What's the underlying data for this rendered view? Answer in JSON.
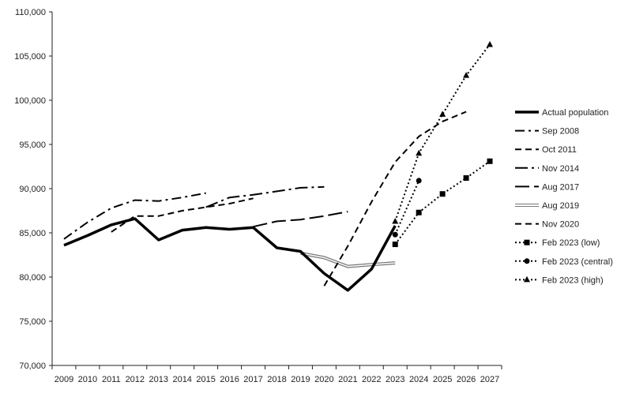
{
  "chart_data": {
    "type": "line",
    "x": [
      "2009",
      "2010",
      "2011",
      "2012",
      "2013",
      "2014",
      "2015",
      "2016",
      "2017",
      "2018",
      "2019",
      "2020",
      "2021",
      "2022",
      "2023",
      "2024",
      "2025",
      "2026",
      "2027"
    ],
    "ylim": [
      70000,
      110000
    ],
    "y_ticks": [
      "70,000",
      "75,000",
      "80,000",
      "85,000",
      "90,000",
      "95,000",
      "100,000",
      "105,000",
      "110,000"
    ],
    "grid": false,
    "legend_position": "right",
    "series": [
      {
        "name": "Actual population",
        "style": "thick-solid",
        "color": "#000000",
        "points": [
          [
            "2009",
            83600
          ],
          [
            "2010",
            84700
          ],
          [
            "2011",
            85900
          ],
          [
            "2012",
            86600
          ],
          [
            "2013",
            84200
          ],
          [
            "2014",
            85300
          ],
          [
            "2015",
            85600
          ],
          [
            "2016",
            85400
          ],
          [
            "2017",
            85600
          ],
          [
            "2018",
            83300
          ],
          [
            "2019",
            82900
          ],
          [
            "2020",
            80400
          ],
          [
            "2021",
            78500
          ],
          [
            "2022",
            80900
          ],
          [
            "2023",
            85800
          ]
        ]
      },
      {
        "name": "Sep 2008",
        "style": "dash-dot",
        "color": "#000000",
        "points": [
          [
            "2009",
            84300
          ],
          [
            "2010",
            86200
          ],
          [
            "2011",
            87800
          ],
          [
            "2012",
            88700
          ],
          [
            "2013",
            88600
          ],
          [
            "2014",
            89000
          ],
          [
            "2015",
            89500
          ]
        ]
      },
      {
        "name": "Oct 2011",
        "style": "dash",
        "color": "#000000",
        "points": [
          [
            "2011",
            85100
          ],
          [
            "2012",
            86900
          ],
          [
            "2013",
            86900
          ],
          [
            "2014",
            87500
          ],
          [
            "2015",
            87900
          ],
          [
            "2016",
            88300
          ],
          [
            "2017",
            88900
          ]
        ]
      },
      {
        "name": "Nov 2014",
        "style": "long-dash-dot",
        "color": "#000000",
        "points": [
          [
            "2015",
            87900
          ],
          [
            "2016",
            89000
          ],
          [
            "2017",
            89300
          ],
          [
            "2018",
            89700
          ],
          [
            "2019",
            90100
          ],
          [
            "2020",
            90200
          ]
        ]
      },
      {
        "name": "Aug 2017",
        "style": "long-dash",
        "color": "#000000",
        "points": [
          [
            "2017",
            85700
          ],
          [
            "2018",
            86300
          ],
          [
            "2019",
            86500
          ],
          [
            "2020",
            86900
          ],
          [
            "2021",
            87400
          ]
        ]
      },
      {
        "name": "Aug 2019",
        "style": "double",
        "color": "#777777",
        "points": [
          [
            "2019",
            82700
          ],
          [
            "2020",
            82200
          ],
          [
            "2021",
            81200
          ],
          [
            "2022",
            81400
          ],
          [
            "2023",
            81600
          ]
        ]
      },
      {
        "name": "Nov 2020",
        "style": "dash",
        "color": "#000000",
        "points": [
          [
            "2020",
            79000
          ],
          [
            "2021",
            83500
          ],
          [
            "2022",
            88500
          ],
          [
            "2023",
            93000
          ],
          [
            "2024",
            95900
          ],
          [
            "2025",
            97600
          ],
          [
            "2026",
            98700
          ]
        ]
      },
      {
        "name": "Feb 2023 (low)",
        "style": "dot",
        "marker": "square",
        "color": "#000000",
        "points": [
          [
            "2023",
            83700
          ],
          [
            "2024",
            87300
          ],
          [
            "2025",
            89400
          ],
          [
            "2026",
            91200
          ],
          [
            "2027",
            93100
          ]
        ]
      },
      {
        "name": "Feb 2023 (central)",
        "style": "dot",
        "marker": "circle",
        "color": "#000000",
        "points": [
          [
            "2023",
            84800
          ],
          [
            "2024",
            90900
          ]
        ]
      },
      {
        "name": "Feb 2023 (high)",
        "style": "dot",
        "marker": "triangle",
        "color": "#000000",
        "points": [
          [
            "2023",
            86300
          ],
          [
            "2024",
            94000
          ],
          [
            "2025",
            98400
          ],
          [
            "2026",
            102800
          ],
          [
            "2027",
            106300
          ]
        ]
      }
    ]
  }
}
